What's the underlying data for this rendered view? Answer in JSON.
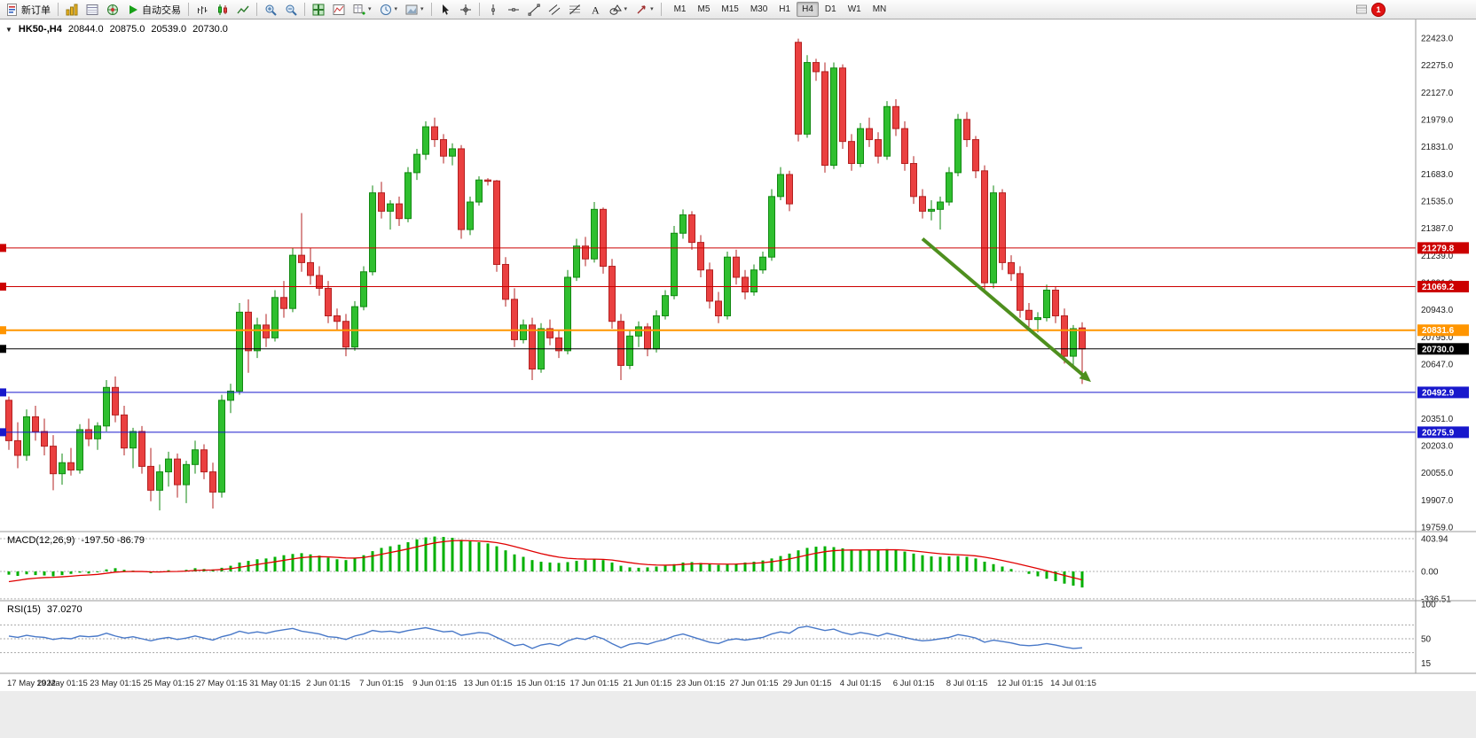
{
  "toolbar": {
    "new_order_label": "新订单",
    "auto_trading_label": "自动交易",
    "timeframes": [
      "M1",
      "M5",
      "M15",
      "M30",
      "H1",
      "H4",
      "D1",
      "W1",
      "MN"
    ],
    "active_timeframe": "H4",
    "notification_badge": "1",
    "icons": [
      "new-order",
      "market-watch",
      "data-window",
      "navigator",
      "auto-trading-play",
      "bar-chart",
      "candlestick-chart",
      "line-chart",
      "zoom-in",
      "zoom-out",
      "tile-windows",
      "indicator-window",
      "add-indicator",
      "period-clock",
      "chart-template",
      "cursor",
      "crosshair",
      "vertical-line",
      "horizontal-line",
      "trendline",
      "equidistant-channel",
      "fibonacci",
      "text-tool",
      "shapes",
      "arrows",
      "notification"
    ]
  },
  "chart_header": {
    "symbol": "HK50-,H4",
    "open": "20844.0",
    "high": "20875.0",
    "low": "20539.0",
    "close": "20730.0"
  },
  "indicators": {
    "macd": {
      "label": "MACD(12,26,9)",
      "values": "-197.50 -86.79"
    },
    "rsi": {
      "label": "RSI(15)",
      "value": "37.0270"
    }
  },
  "chart_data": [
    {
      "type": "candlestick",
      "symbol": "HK50-",
      "timeframe": "H4",
      "ohlc_current": {
        "open": 20844.0,
        "high": 20875.0,
        "low": 20539.0,
        "close": 20730.0
      },
      "y_axis": {
        "min": 19759.0,
        "max": 22423.0,
        "step": 148.0,
        "labels": [
          "22423.0",
          "22275.0",
          "22127.0",
          "21979.0",
          "21831.0",
          "21683.0",
          "21535.0",
          "21387.0",
          "21239.0",
          "21091.0",
          "20943.0",
          "20795.0",
          "20647.0",
          "20499.0",
          "20351.0",
          "20203.0",
          "20055.0",
          "19907.0",
          "19759.0"
        ]
      },
      "x_labels": [
        "17 May 2022",
        "19 May 01:15",
        "23 May 01:15",
        "25 May 01:15",
        "27 May 01:15",
        "31 May 01:15",
        "2 Jun 01:15",
        "7 Jun 01:15",
        "9 Jun 01:15",
        "13 Jun 01:15",
        "15 Jun 01:15",
        "17 Jun 01:15",
        "21 Jun 01:15",
        "23 Jun 01:15",
        "27 Jun 01:15",
        "29 Jun 01:15",
        "4 Jul 01:15",
        "6 Jul 01:15",
        "8 Jul 01:15",
        "12 Jul 01:15",
        "14 Jul 01:15"
      ],
      "up_color": "#2fbf2f",
      "down_color": "#ea4040",
      "candles": [
        [
          20450,
          20470,
          20180,
          20230
        ],
        [
          20230,
          20330,
          20080,
          20150
        ],
        [
          20150,
          20400,
          20120,
          20360
        ],
        [
          20360,
          20420,
          20230,
          20280
        ],
        [
          20280,
          20350,
          20150,
          20200
        ],
        [
          20200,
          20260,
          19960,
          20050
        ],
        [
          20050,
          20160,
          19990,
          20110
        ],
        [
          20110,
          20190,
          20040,
          20070
        ],
        [
          20070,
          20320,
          20050,
          20290
        ],
        [
          20290,
          20350,
          20200,
          20240
        ],
        [
          20240,
          20330,
          20180,
          20310
        ],
        [
          20310,
          20560,
          20280,
          20520
        ],
        [
          20520,
          20580,
          20330,
          20370
        ],
        [
          20370,
          20420,
          20150,
          20190
        ],
        [
          20190,
          20300,
          20080,
          20280
        ],
        [
          20280,
          20310,
          20050,
          20090
        ],
        [
          20090,
          20190,
          19900,
          19960
        ],
        [
          19960,
          20100,
          19850,
          20060
        ],
        [
          20060,
          20170,
          19980,
          20130
        ],
        [
          20130,
          20160,
          19920,
          19990
        ],
        [
          19990,
          20120,
          19890,
          20100
        ],
        [
          20100,
          20230,
          20050,
          20180
        ],
        [
          20180,
          20210,
          20020,
          20060
        ],
        [
          20060,
          20110,
          19860,
          19950
        ],
        [
          19950,
          20480,
          19920,
          20450
        ],
        [
          20450,
          20540,
          20380,
          20500
        ],
        [
          20500,
          20980,
          20480,
          20930
        ],
        [
          20930,
          21000,
          20600,
          20720
        ],
        [
          20720,
          20900,
          20680,
          20860
        ],
        [
          20860,
          20920,
          20740,
          20790
        ],
        [
          20790,
          21050,
          20770,
          21010
        ],
        [
          21010,
          21100,
          20900,
          20950
        ],
        [
          20950,
          21280,
          20930,
          21240
        ],
        [
          21240,
          21470,
          21150,
          21200
        ],
        [
          21200,
          21280,
          21080,
          21130
        ],
        [
          21130,
          21180,
          21020,
          21060
        ],
        [
          21060,
          21100,
          20870,
          20910
        ],
        [
          20910,
          20950,
          20830,
          20880
        ],
        [
          20880,
          20920,
          20690,
          20740
        ],
        [
          20740,
          20990,
          20720,
          20960
        ],
        [
          20960,
          21180,
          20940,
          21150
        ],
        [
          21150,
          21620,
          21130,
          21580
        ],
        [
          21580,
          21640,
          21440,
          21480
        ],
        [
          21480,
          21540,
          21380,
          21520
        ],
        [
          21520,
          21560,
          21400,
          21440
        ],
        [
          21440,
          21720,
          21420,
          21690
        ],
        [
          21690,
          21820,
          21650,
          21790
        ],
        [
          21790,
          21970,
          21760,
          21940
        ],
        [
          21940,
          21990,
          21830,
          21870
        ],
        [
          21870,
          21900,
          21740,
          21780
        ],
        [
          21780,
          21850,
          21730,
          21820
        ],
        [
          21820,
          21840,
          21330,
          21380
        ],
        [
          21380,
          21560,
          21350,
          21530
        ],
        [
          21530,
          21670,
          21510,
          21650
        ],
        [
          21650,
          21660,
          21620,
          21645
        ],
        [
          21645,
          21650,
          21150,
          21190
        ],
        [
          21190,
          21230,
          20960,
          21000
        ],
        [
          21000,
          21060,
          20740,
          20780
        ],
        [
          20780,
          20890,
          20760,
          20860
        ],
        [
          20860,
          20900,
          20560,
          20620
        ],
        [
          20620,
          20870,
          20600,
          20840
        ],
        [
          20840,
          20890,
          20750,
          20790
        ],
        [
          20790,
          20830,
          20680,
          20720
        ],
        [
          20720,
          21160,
          20700,
          21120
        ],
        [
          21120,
          21330,
          21100,
          21290
        ],
        [
          21290,
          21340,
          21180,
          21220
        ],
        [
          21220,
          21530,
          21200,
          21490
        ],
        [
          21490,
          21500,
          21140,
          21180
        ],
        [
          21180,
          21220,
          20840,
          20880
        ],
        [
          20880,
          20920,
          20560,
          20640
        ],
        [
          20640,
          20830,
          20620,
          20800
        ],
        [
          20800,
          20880,
          20740,
          20850
        ],
        [
          20850,
          20870,
          20690,
          20730
        ],
        [
          20730,
          20940,
          20710,
          20910
        ],
        [
          20910,
          21050,
          20890,
          21020
        ],
        [
          21020,
          21400,
          21000,
          21360
        ],
        [
          21360,
          21490,
          21330,
          21460
        ],
        [
          21460,
          21480,
          21270,
          21310
        ],
        [
          21310,
          21350,
          21120,
          21160
        ],
        [
          21160,
          21200,
          20950,
          20990
        ],
        [
          20990,
          21040,
          20870,
          20910
        ],
        [
          20910,
          21260,
          20890,
          21230
        ],
        [
          21230,
          21270,
          21080,
          21120
        ],
        [
          21120,
          21160,
          21000,
          21040
        ],
        [
          21040,
          21190,
          21020,
          21160
        ],
        [
          21160,
          21260,
          21140,
          21230
        ],
        [
          21230,
          21600,
          21210,
          21560
        ],
        [
          21560,
          21720,
          21540,
          21680
        ],
        [
          21680,
          21700,
          21480,
          21520
        ],
        [
          22400,
          22420,
          21860,
          21900
        ],
        [
          21900,
          22330,
          21880,
          22290
        ],
        [
          22290,
          22310,
          22190,
          22240
        ],
        [
          22240,
          22290,
          21690,
          21730
        ],
        [
          21730,
          22290,
          21710,
          22260
        ],
        [
          22260,
          22280,
          21820,
          21860
        ],
        [
          21860,
          21900,
          21700,
          21740
        ],
        [
          21740,
          21960,
          21720,
          21930
        ],
        [
          21930,
          21990,
          21830,
          21870
        ],
        [
          21870,
          21910,
          21740,
          21780
        ],
        [
          21780,
          22080,
          21760,
          22050
        ],
        [
          22050,
          22090,
          21890,
          21930
        ],
        [
          21930,
          21970,
          21700,
          21740
        ],
        [
          21740,
          21780,
          21520,
          21560
        ],
        [
          21560,
          21600,
          21440,
          21480
        ],
        [
          21480,
          21540,
          21430,
          21490
        ],
        [
          21490,
          21560,
          21380,
          21530
        ],
        [
          21530,
          21720,
          21510,
          21690
        ],
        [
          21690,
          22010,
          21670,
          21980
        ],
        [
          21980,
          22020,
          21830,
          21870
        ],
        [
          21870,
          21890,
          21660,
          21700
        ],
        [
          21700,
          21730,
          21040,
          21090
        ],
        [
          21090,
          21620,
          21060,
          21580
        ],
        [
          21580,
          21600,
          21160,
          21200
        ],
        [
          21200,
          21240,
          21100,
          21140
        ],
        [
          21140,
          21180,
          20900,
          20940
        ],
        [
          20940,
          20980,
          20850,
          20890
        ],
        [
          20890,
          20930,
          20820,
          20900
        ],
        [
          20900,
          21080,
          20880,
          21050
        ],
        [
          21050,
          21070,
          20870,
          20910
        ],
        [
          20910,
          20950,
          20650,
          20690
        ],
        [
          20690,
          20860,
          20640,
          20840
        ],
        [
          20844,
          20875,
          20539,
          20730
        ]
      ],
      "levels": [
        {
          "price": 21279.8,
          "label": "21279.8",
          "color": "#cc0000",
          "width": 1
        },
        {
          "price": 21069.2,
          "label": "21069.2",
          "color": "#cc0000",
          "width": 1
        },
        {
          "price": 20831.6,
          "label": "20831.6",
          "color": "#ff9500",
          "width": 2
        },
        {
          "price": 20730.0,
          "label": "20730.0",
          "color": "#000000",
          "width": 1
        },
        {
          "price": 20492.9,
          "label": "20492.9",
          "color": "#1818cc",
          "width": 1
        },
        {
          "price": 20275.9,
          "label": "20275.9",
          "color": "#1818cc",
          "width": 1
        }
      ],
      "annotation_arrow": {
        "from": {
          "index": 103,
          "price": 21330
        },
        "to": {
          "index": 122,
          "price": 20550
        },
        "color": "#4e8f1e"
      }
    },
    {
      "type": "bar",
      "name": "MACD(12,26,9)",
      "macd_value": -197.5,
      "signal_value": -86.79,
      "color": "#00b000",
      "signal_color": "#e00000",
      "axis_labels": [
        {
          "label": "403.94",
          "value": 403.94
        },
        {
          "label": "0.00",
          "value": 0
        },
        {
          "label": "-336.51",
          "value": -336.51
        }
      ],
      "values": [
        -40,
        -55,
        -35,
        -45,
        -50,
        -60,
        -45,
        -30,
        -15,
        -25,
        -10,
        25,
        40,
        20,
        10,
        -5,
        -20,
        -10,
        15,
        5,
        20,
        40,
        30,
        25,
        45,
        70,
        110,
        130,
        150,
        160,
        180,
        200,
        215,
        225,
        210,
        195,
        170,
        150,
        140,
        160,
        200,
        250,
        290,
        310,
        330,
        360,
        395,
        420,
        430,
        425,
        415,
        390,
        370,
        360,
        345,
        310,
        260,
        210,
        180,
        140,
        120,
        110,
        105,
        115,
        130,
        140,
        150,
        140,
        110,
        70,
        50,
        45,
        50,
        60,
        70,
        90,
        110,
        115,
        105,
        90,
        80,
        85,
        95,
        110,
        120,
        135,
        160,
        190,
        220,
        260,
        290,
        305,
        310,
        300,
        285,
        270,
        265,
        270,
        265,
        275,
        265,
        245,
        220,
        200,
        185,
        180,
        185,
        190,
        180,
        160,
        120,
        90,
        60,
        30,
        0,
        -30,
        -60,
        -90,
        -120,
        -150,
        -175,
        -197.5
      ]
    },
    {
      "type": "line",
      "name": "RSI(15)",
      "current": 37.027,
      "color": "#4878c8",
      "axis_labels": [
        {
          "label": "100",
          "value": 100
        },
        {
          "label": "50",
          "value": 50
        },
        {
          "label": "15",
          "value": 15
        }
      ],
      "levels": [
        70,
        50,
        30
      ],
      "values": [
        54,
        52,
        55,
        53,
        52,
        49,
        51,
        50,
        54,
        53,
        54,
        58,
        54,
        51,
        53,
        50,
        47,
        50,
        52,
        49,
        51,
        54,
        51,
        48,
        53,
        56,
        61,
        58,
        60,
        58,
        61,
        63,
        65,
        61,
        59,
        57,
        53,
        52,
        49,
        54,
        57,
        62,
        60,
        61,
        59,
        62,
        64,
        66,
        63,
        60,
        61,
        55,
        57,
        59,
        58,
        52,
        46,
        40,
        42,
        36,
        41,
        43,
        40,
        47,
        51,
        49,
        54,
        50,
        43,
        37,
        42,
        44,
        42,
        46,
        49,
        54,
        57,
        53,
        49,
        45,
        43,
        48,
        50,
        48,
        50,
        52,
        57,
        60,
        58,
        66,
        68,
        65,
        62,
        64,
        59,
        56,
        59,
        57,
        54,
        58,
        55,
        52,
        49,
        47,
        48,
        50,
        52,
        56,
        54,
        51,
        45,
        48,
        46,
        44,
        41,
        40,
        41,
        43,
        41,
        38,
        36,
        37
      ]
    }
  ]
}
